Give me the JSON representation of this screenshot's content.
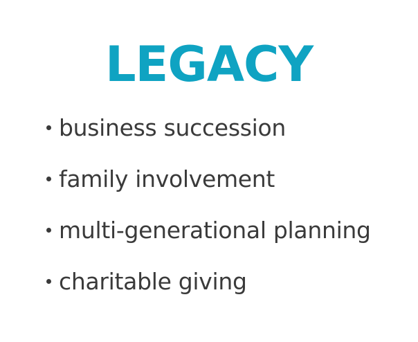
{
  "title": "LEGACY",
  "items": [
    {
      "label": "business succession"
    },
    {
      "label": "family involvement"
    },
    {
      "label": "multi-generational planning"
    },
    {
      "label": "charitable giving"
    }
  ],
  "colors": {
    "accent": "#0fa3c2",
    "text": "#3a3a3a",
    "background": "#ffffff"
  }
}
